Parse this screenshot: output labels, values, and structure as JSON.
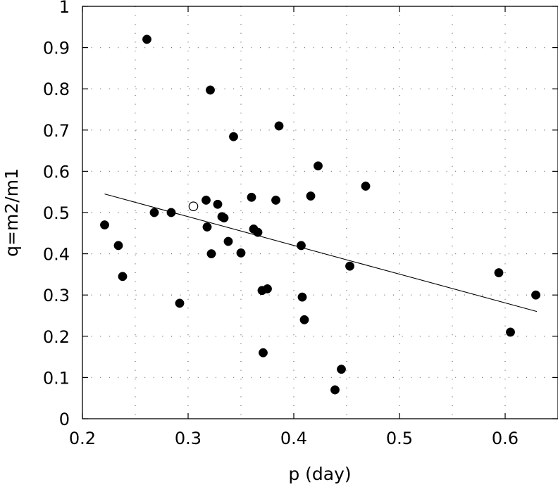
{
  "chart_data": {
    "type": "scatter",
    "title": "",
    "xlabel": "p (day)",
    "ylabel": "q=m2/m1",
    "xlim": [
      0.2,
      0.65
    ],
    "ylim": [
      0,
      1
    ],
    "xticks": [
      0.2,
      0.3,
      0.4,
      0.5,
      0.6
    ],
    "xtick_labels": [
      "0.2",
      "0.3",
      "0.4",
      "0.5",
      "0.6"
    ],
    "yticks": [
      0,
      0.1,
      0.2,
      0.3,
      0.4,
      0.5,
      0.6,
      0.7,
      0.8,
      0.9,
      1
    ],
    "ytick_labels": [
      "0",
      "0.1",
      "0.2",
      "0.3",
      "0.4",
      "0.5",
      "0.6",
      "0.7",
      "0.8",
      "0.9",
      "1"
    ],
    "grid": true,
    "series": [
      {
        "marker": "filled-circle",
        "color": "#000000",
        "points": [
          [
            0.221,
            0.47
          ],
          [
            0.234,
            0.42
          ],
          [
            0.238,
            0.345
          ],
          [
            0.261,
            0.92
          ],
          [
            0.268,
            0.5
          ],
          [
            0.284,
            0.5
          ],
          [
            0.292,
            0.28
          ],
          [
            0.317,
            0.53
          ],
          [
            0.318,
            0.465
          ],
          [
            0.321,
            0.797
          ],
          [
            0.322,
            0.4
          ],
          [
            0.328,
            0.52
          ],
          [
            0.332,
            0.49
          ],
          [
            0.334,
            0.487
          ],
          [
            0.338,
            0.43
          ],
          [
            0.343,
            0.684
          ],
          [
            0.35,
            0.402
          ],
          [
            0.36,
            0.537
          ],
          [
            0.362,
            0.46
          ],
          [
            0.366,
            0.452
          ],
          [
            0.37,
            0.311
          ],
          [
            0.371,
            0.16
          ],
          [
            0.375,
            0.315
          ],
          [
            0.383,
            0.53
          ],
          [
            0.386,
            0.71
          ],
          [
            0.407,
            0.42
          ],
          [
            0.408,
            0.295
          ],
          [
            0.41,
            0.24
          ],
          [
            0.416,
            0.54
          ],
          [
            0.423,
            0.613
          ],
          [
            0.439,
            0.07
          ],
          [
            0.445,
            0.12
          ],
          [
            0.453,
            0.37
          ],
          [
            0.468,
            0.564
          ],
          [
            0.594,
            0.354
          ],
          [
            0.605,
            0.21
          ],
          [
            0.629,
            0.3
          ]
        ]
      },
      {
        "marker": "open-circle",
        "color": "#000000",
        "points": [
          [
            0.305,
            0.515
          ]
        ]
      }
    ],
    "trend_line": {
      "from": [
        0.221,
        0.545
      ],
      "to": [
        0.63,
        0.26
      ]
    }
  }
}
